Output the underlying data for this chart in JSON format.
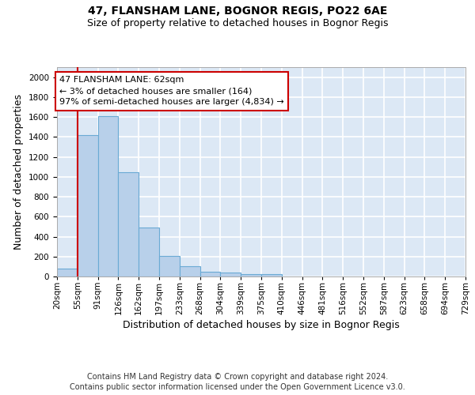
{
  "title": "47, FLANSHAM LANE, BOGNOR REGIS, PO22 6AE",
  "subtitle": "Size of property relative to detached houses in Bognor Regis",
  "xlabel": "Distribution of detached houses by size in Bognor Regis",
  "ylabel": "Number of detached properties",
  "bar_values": [
    80,
    1420,
    1610,
    1045,
    490,
    205,
    105,
    48,
    38,
    25,
    20,
    0,
    0,
    0,
    0,
    0,
    0,
    0,
    0,
    0
  ],
  "bin_labels": [
    "20sqm",
    "55sqm",
    "91sqm",
    "126sqm",
    "162sqm",
    "197sqm",
    "233sqm",
    "268sqm",
    "304sqm",
    "339sqm",
    "375sqm",
    "410sqm",
    "446sqm",
    "481sqm",
    "516sqm",
    "552sqm",
    "587sqm",
    "623sqm",
    "658sqm",
    "694sqm",
    "729sqm"
  ],
  "bar_color": "#b8d0ea",
  "bar_edge_color": "#6aaad4",
  "vline_x": 1.0,
  "vline_color": "#cc0000",
  "annotation_line1": "47 FLANSHAM LANE: 62sqm",
  "annotation_line2": "← 3% of detached houses are smaller (164)",
  "annotation_line3": "97% of semi-detached houses are larger (4,834) →",
  "annotation_box_edgecolor": "#cc0000",
  "ylim": [
    0,
    2100
  ],
  "yticks": [
    0,
    200,
    400,
    600,
    800,
    1000,
    1200,
    1400,
    1600,
    1800,
    2000
  ],
  "footer_line1": "Contains HM Land Registry data © Crown copyright and database right 2024.",
  "footer_line2": "Contains public sector information licensed under the Open Government Licence v3.0.",
  "background_color": "#dce8f5",
  "grid_color": "#ffffff",
  "title_fontsize": 10,
  "subtitle_fontsize": 9,
  "axis_label_fontsize": 9,
  "tick_fontsize": 7.5,
  "annotation_fontsize": 8,
  "footer_fontsize": 7
}
